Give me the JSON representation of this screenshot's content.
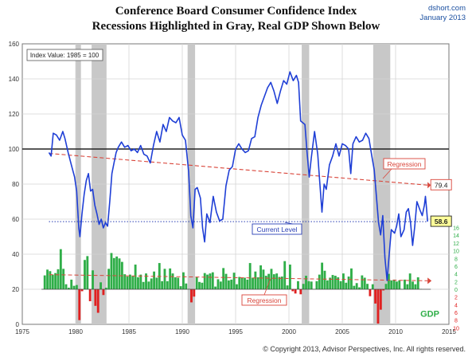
{
  "title": {
    "line1": "Conference Board Consumer Confidence Index",
    "line2": "Recessions Highlighted in Gray, Real GDP Shown Below"
  },
  "source": {
    "site": "dshort.com",
    "date": "January 2013"
  },
  "copyright": "© Copyright 2013, Advisor Perspectives, Inc. All rights reserved.",
  "colors": {
    "index_line": "#1f3fd6",
    "recession_band": "#c8c8c8",
    "regression": "#d9453a",
    "gdp_positive": "#2fae48",
    "gdp_negative": "#e02020",
    "current_level": "#2a3fb5"
  },
  "chart_data": {
    "type": "line",
    "index_note": "Index Value: 1985 = 100",
    "xlim": [
      1975,
      2015
    ],
    "ylim": [
      0,
      160
    ],
    "x_ticks": [
      1975,
      1980,
      1985,
      1990,
      1995,
      2000,
      2005,
      2010,
      2015
    ],
    "y_ticks": [
      0,
      20,
      40,
      60,
      80,
      100,
      120,
      140,
      160
    ],
    "gdp_axis": {
      "label": "GDP",
      "zero_at_index": 20,
      "ticks_positive": [
        0,
        2,
        4,
        6,
        8,
        10,
        12,
        14,
        16
      ],
      "ticks_negative": [
        2,
        4,
        6,
        8,
        10
      ]
    },
    "recessions": [
      [
        1980.0,
        1980.5
      ],
      [
        1981.5,
        1982.9
      ],
      [
        1990.5,
        1991.2
      ],
      [
        2001.2,
        2001.9
      ],
      [
        2007.9,
        2009.5
      ]
    ],
    "baseline": 100,
    "regression": {
      "label": "Regression",
      "start": [
        1977.5,
        97.5
      ],
      "end": [
        2013.0,
        79.4
      ],
      "end_label": "79.4"
    },
    "current_level": {
      "label": "Current Level",
      "value": 58.6,
      "value_label": "58.6",
      "start_x": 1977.5
    },
    "gdp_regression": {
      "label": "Regression",
      "start": [
        1977.5,
        3.8
      ],
      "end": [
        2013.0,
        2.2
      ]
    },
    "series": [
      {
        "name": "Consumer Confidence Index",
        "points": [
          [
            1977.5,
            98
          ],
          [
            1977.7,
            96
          ],
          [
            1977.9,
            109
          ],
          [
            1978.2,
            108
          ],
          [
            1978.5,
            105
          ],
          [
            1978.8,
            110
          ],
          [
            1979.0,
            106
          ],
          [
            1979.3,
            98
          ],
          [
            1979.6,
            91
          ],
          [
            1979.9,
            84
          ],
          [
            1980.1,
            76
          ],
          [
            1980.3,
            55
          ],
          [
            1980.4,
            50
          ],
          [
            1980.6,
            63
          ],
          [
            1980.8,
            74
          ],
          [
            1981.0,
            82
          ],
          [
            1981.2,
            86
          ],
          [
            1981.4,
            76
          ],
          [
            1981.6,
            77
          ],
          [
            1981.8,
            68
          ],
          [
            1982.0,
            63
          ],
          [
            1982.2,
            57
          ],
          [
            1982.4,
            60
          ],
          [
            1982.6,
            55
          ],
          [
            1982.8,
            58
          ],
          [
            1983.0,
            56
          ],
          [
            1983.2,
            70
          ],
          [
            1983.4,
            86
          ],
          [
            1983.6,
            92
          ],
          [
            1983.8,
            98
          ],
          [
            1984.0,
            101
          ],
          [
            1984.3,
            104
          ],
          [
            1984.6,
            101
          ],
          [
            1984.9,
            102
          ],
          [
            1985.2,
            99
          ],
          [
            1985.5,
            100
          ],
          [
            1985.8,
            98
          ],
          [
            1986.1,
            102
          ],
          [
            1986.4,
            97
          ],
          [
            1986.7,
            96
          ],
          [
            1987.0,
            92
          ],
          [
            1987.3,
            102
          ],
          [
            1987.6,
            110
          ],
          [
            1987.9,
            104
          ],
          [
            1988.2,
            114
          ],
          [
            1988.5,
            110
          ],
          [
            1988.8,
            118
          ],
          [
            1989.1,
            116
          ],
          [
            1989.4,
            115
          ],
          [
            1989.7,
            118
          ],
          [
            1990.0,
            108
          ],
          [
            1990.3,
            105
          ],
          [
            1990.6,
            87
          ],
          [
            1990.8,
            62
          ],
          [
            1991.0,
            55
          ],
          [
            1991.2,
            77
          ],
          [
            1991.4,
            78
          ],
          [
            1991.7,
            72
          ],
          [
            1991.9,
            55
          ],
          [
            1992.1,
            47
          ],
          [
            1992.3,
            63
          ],
          [
            1992.6,
            58
          ],
          [
            1992.9,
            73
          ],
          [
            1993.2,
            64
          ],
          [
            1993.5,
            59
          ],
          [
            1993.8,
            60
          ],
          [
            1994.1,
            79
          ],
          [
            1994.4,
            88
          ],
          [
            1994.7,
            90
          ],
          [
            1995.0,
            100
          ],
          [
            1995.3,
            103
          ],
          [
            1995.6,
            100
          ],
          [
            1995.9,
            98
          ],
          [
            1996.2,
            99
          ],
          [
            1996.5,
            106
          ],
          [
            1996.8,
            107
          ],
          [
            1997.1,
            118
          ],
          [
            1997.4,
            125
          ],
          [
            1997.7,
            130
          ],
          [
            1998.0,
            135
          ],
          [
            1998.3,
            138
          ],
          [
            1998.6,
            133
          ],
          [
            1998.9,
            126
          ],
          [
            1999.2,
            133
          ],
          [
            1999.5,
            139
          ],
          [
            1999.8,
            137
          ],
          [
            2000.1,
            144
          ],
          [
            2000.4,
            139
          ],
          [
            2000.7,
            142
          ],
          [
            2000.9,
            138
          ],
          [
            2001.1,
            116
          ],
          [
            2001.3,
            115
          ],
          [
            2001.5,
            114
          ],
          [
            2001.7,
            98
          ],
          [
            2001.9,
            84
          ],
          [
            2002.1,
            95
          ],
          [
            2002.4,
            110
          ],
          [
            2002.7,
            97
          ],
          [
            2002.9,
            80
          ],
          [
            2003.1,
            64
          ],
          [
            2003.3,
            80
          ],
          [
            2003.5,
            77
          ],
          [
            2003.8,
            91
          ],
          [
            2004.1,
            96
          ],
          [
            2004.4,
            103
          ],
          [
            2004.7,
            96
          ],
          [
            2005.0,
            103
          ],
          [
            2005.3,
            102
          ],
          [
            2005.6,
            100
          ],
          [
            2005.8,
            86
          ],
          [
            2006.0,
            103
          ],
          [
            2006.3,
            107
          ],
          [
            2006.6,
            104
          ],
          [
            2006.9,
            105
          ],
          [
            2007.2,
            109
          ],
          [
            2007.5,
            106
          ],
          [
            2007.8,
            95
          ],
          [
            2008.0,
            88
          ],
          [
            2008.2,
            73
          ],
          [
            2008.4,
            58
          ],
          [
            2008.6,
            51
          ],
          [
            2008.8,
            62
          ],
          [
            2009.0,
            38
          ],
          [
            2009.2,
            25
          ],
          [
            2009.4,
            40
          ],
          [
            2009.6,
            54
          ],
          [
            2009.9,
            52
          ],
          [
            2010.1,
            56
          ],
          [
            2010.3,
            63
          ],
          [
            2010.5,
            50
          ],
          [
            2010.8,
            54
          ],
          [
            2011.0,
            64
          ],
          [
            2011.2,
            66
          ],
          [
            2011.4,
            58
          ],
          [
            2011.6,
            45
          ],
          [
            2011.8,
            56
          ],
          [
            2012.0,
            70
          ],
          [
            2012.3,
            65
          ],
          [
            2012.5,
            62
          ],
          [
            2012.7,
            68
          ],
          [
            2012.8,
            73
          ],
          [
            2012.9,
            66
          ],
          [
            2013.0,
            58.6
          ]
        ]
      },
      {
        "name": "Real GDP",
        "quarterly_start": 1977.0,
        "values": [
          3.6,
          5.1,
          4.7,
          3.8,
          4.2,
          5.2,
          10.4,
          5.3,
          1.3,
          0.4,
          2.5,
          0.9,
          1.1,
          -8.0,
          -0.5,
          7.6,
          8.6,
          -3.1,
          4.9,
          -4.3,
          -6.1,
          1.8,
          -1.5,
          0.4,
          5.3,
          9.4,
          8.1,
          8.5,
          8.0,
          7.1,
          3.9,
          3.3,
          3.8,
          3.4,
          6.4,
          3.1,
          3.8,
          1.9,
          4.1,
          2.0,
          2.8,
          4.6,
          3.0,
          6.8,
          2.1,
          5.3,
          2.1,
          5.4,
          4.1,
          3.1,
          3.0,
          0.8,
          4.4,
          1.5,
          0.1,
          -3.4,
          -1.9,
          3.1,
          1.9,
          1.7,
          4.2,
          3.8,
          4.1,
          4.4,
          0.7,
          2.6,
          2.0,
          5.5,
          4.0,
          2.3,
          2.5,
          4.3,
          1.3,
          3.2,
          2.9,
          3.0,
          2.5,
          6.8,
          3.0,
          4.6,
          3.1,
          6.2,
          5.1,
          3.5,
          4.0,
          5.3,
          3.9,
          4.1,
          3.2,
          3.3,
          7.3,
          1.0,
          6.4,
          -0.5,
          -1.1,
          2.1,
          -1.3,
          1.4,
          3.5,
          2.1,
          2.0,
          0.1,
          2.1,
          3.8,
          6.9,
          4.8,
          2.3,
          3.0,
          3.7,
          3.5,
          3.1,
          2.1,
          4.1,
          1.7,
          3.3,
          5.4,
          0.9,
          1.6,
          0.5,
          3.6,
          3.0,
          1.4,
          -1.8,
          1.3,
          -3.7,
          -8.9,
          -5.3,
          -0.3,
          1.4,
          4.0,
          2.3,
          2.5,
          2.0,
          2.3,
          0.1,
          2.5,
          1.3,
          4.1,
          2.0,
          1.3,
          3.1,
          0.1
        ]
      }
    ]
  }
}
